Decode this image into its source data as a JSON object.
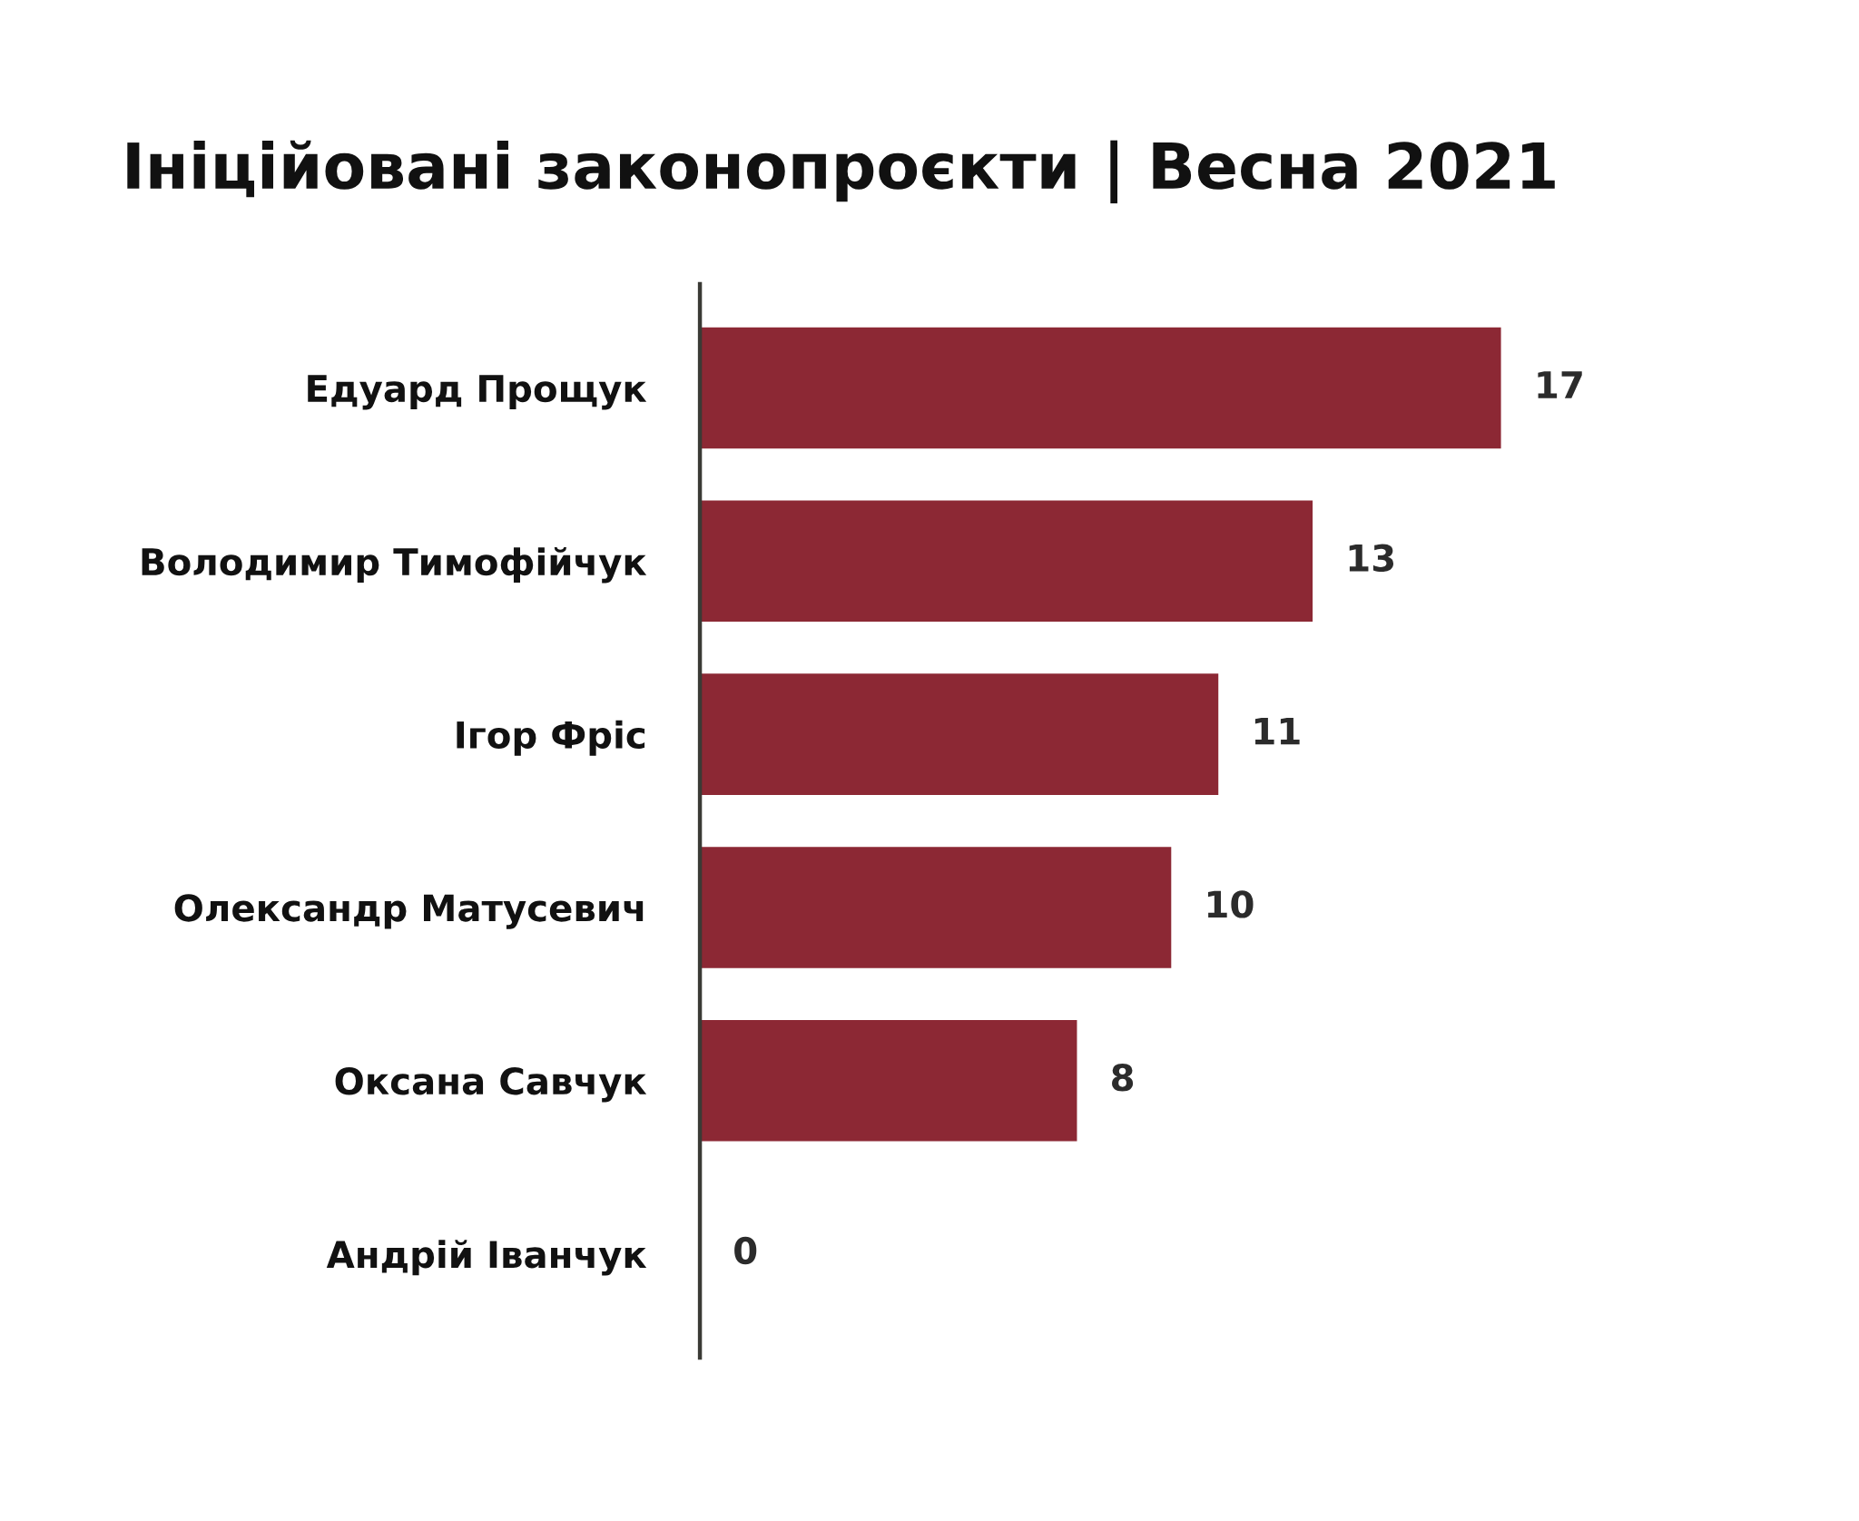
{
  "chart_data": {
    "type": "bar",
    "orientation": "horizontal",
    "title": "Ініційовані законопроєкти | Весна 2021",
    "categories": [
      "Едуард Прощук",
      "Володимир Тимофійчук",
      "Ігор Фріс",
      "Олександр Матусевич",
      "Оксана Савчук",
      "Андрій Іванчук"
    ],
    "values": [
      17,
      13,
      11,
      10,
      8,
      0
    ],
    "color": "#8c2834",
    "tick_labels": "y",
    "data_labels": true,
    "grid": false,
    "legend": false
  }
}
